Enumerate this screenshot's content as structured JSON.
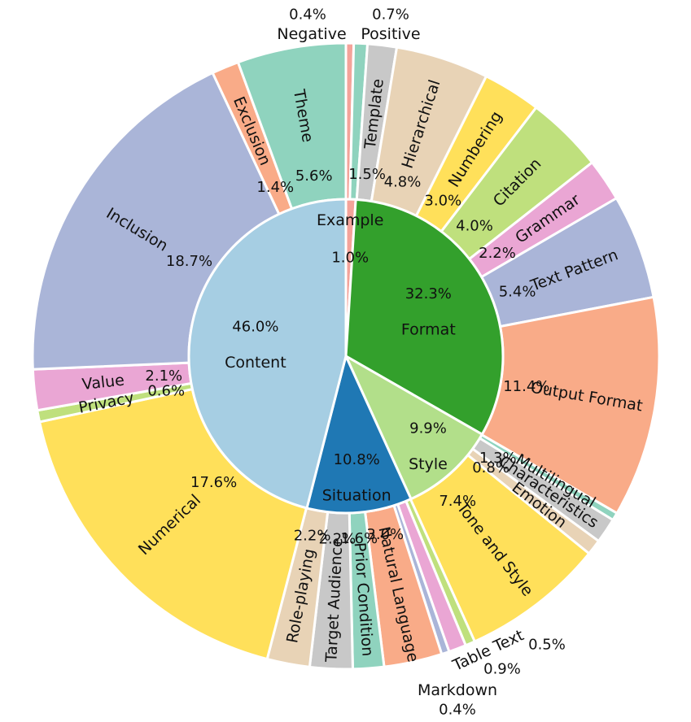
{
  "chart_data": {
    "type": "pie",
    "title": "",
    "inner": [
      {
        "label": "Example",
        "value": 1.0,
        "pct": "1.0%",
        "color": "#f4a39a"
      },
      {
        "label": "Format",
        "value": 32.3,
        "pct": "32.3%",
        "color": "#33a02c"
      },
      {
        "label": "Style",
        "value": 9.9,
        "pct": "9.9%",
        "color": "#b2df8a"
      },
      {
        "label": "Situation",
        "value": 10.8,
        "pct": "10.8%",
        "color": "#1f78b4"
      },
      {
        "label": "Content",
        "value": 46.0,
        "pct": "46.0%",
        "color": "#a6cee3"
      }
    ],
    "outer": [
      {
        "label": "Negative",
        "value": 0.4,
        "pct": "0.4%",
        "color": "#f4a39a"
      },
      {
        "label": "Positive",
        "value": 0.7,
        "pct": "0.7%",
        "color": "#8fd3be"
      },
      {
        "label": "Template",
        "value": 1.5,
        "pct": "1.5%",
        "color": "#c8c8c8"
      },
      {
        "label": "Hierarchical",
        "value": 4.8,
        "pct": "4.8%",
        "color": "#e8d3b6"
      },
      {
        "label": "Numbering",
        "value": 3.0,
        "pct": "3.0%",
        "color": "#ffe05a"
      },
      {
        "label": "Citation",
        "value": 4.0,
        "pct": "4.0%",
        "color": "#bfe07d"
      },
      {
        "label": "Grammar",
        "value": 2.2,
        "pct": "2.2%",
        "color": "#eaa6d4"
      },
      {
        "label": "Text Pattern",
        "value": 5.4,
        "pct": "5.4%",
        "color": "#aab5d8"
      },
      {
        "label": "Output Format",
        "value": 11.4,
        "pct": "11.4%",
        "color": "#f9ab88"
      },
      {
        "label": "Multilingual",
        "value": 0.4,
        "pct": "0.4%",
        "color": "#8fd3be"
      },
      {
        "label": "Characteristics",
        "value": 1.3,
        "pct": "1.3%",
        "color": "#c8c8c8"
      },
      {
        "label": "Emotion",
        "value": 0.8,
        "pct": "0.8%",
        "color": "#e8d3b6"
      },
      {
        "label": "Tone and Style",
        "value": 7.4,
        "pct": "7.4%",
        "color": "#ffe05a"
      },
      {
        "label": "Table Text",
        "value": 0.5,
        "pct": "0.5%",
        "color": "#bfe07d"
      },
      {
        "label": "",
        "value": 0.9,
        "pct": "0.9%",
        "color": "#eaa6d4"
      },
      {
        "label": "Markdown",
        "value": 0.4,
        "pct": "0.4%",
        "color": "#aab5d8"
      },
      {
        "label": "Natural Language",
        "value": 3.0,
        "pct": "3.0%",
        "color": "#f9ab88"
      },
      {
        "label": "Prior Condition",
        "value": 1.6,
        "pct": "1.6%",
        "color": "#8fd3be"
      },
      {
        "label": "Target Audience",
        "value": 2.2,
        "pct": "2.2%",
        "color": "#c8c8c8"
      },
      {
        "label": "Role-playing",
        "value": 2.2,
        "pct": "2.2%",
        "color": "#e8d3b6"
      },
      {
        "label": "Numerical",
        "value": 17.6,
        "pct": "17.6%",
        "color": "#ffe05a"
      },
      {
        "label": "Privacy",
        "value": 0.6,
        "pct": "0.6%",
        "color": "#bfe07d"
      },
      {
        "label": "Value",
        "value": 2.1,
        "pct": "2.1%",
        "color": "#eaa6d4"
      },
      {
        "label": "Inclusion",
        "value": 18.7,
        "pct": "18.7%",
        "color": "#aab5d8"
      },
      {
        "label": "Exclusion",
        "value": 1.4,
        "pct": "1.4%",
        "color": "#f9ab88"
      },
      {
        "label": "Theme",
        "value": 5.6,
        "pct": "5.6%",
        "color": "#8fd3be"
      }
    ]
  }
}
